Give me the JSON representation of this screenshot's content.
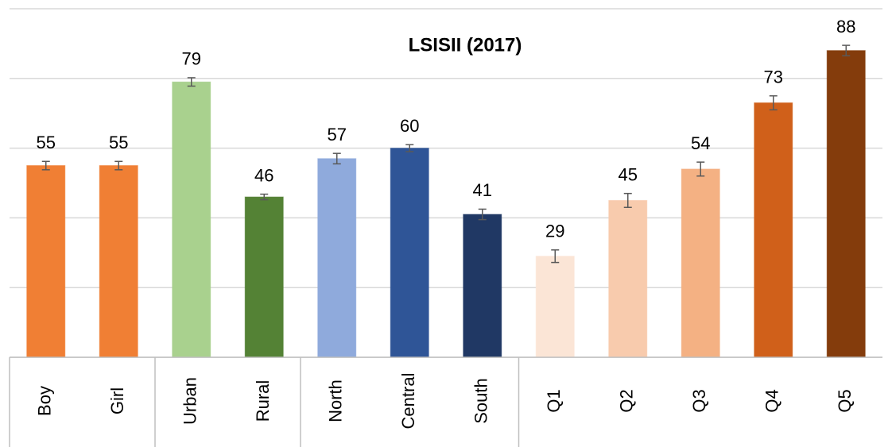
{
  "chart_data": {
    "type": "bar",
    "title": "LSISII (2017)",
    "categories": [
      "Boy",
      "Girl",
      "Urban",
      "Rural",
      "North",
      "Central",
      "South",
      "Q1",
      "Q2",
      "Q3",
      "Q4",
      "Q5"
    ],
    "values": [
      55,
      55,
      79,
      46,
      57,
      60,
      41,
      29,
      45,
      54,
      73,
      88
    ],
    "errors": [
      1.2,
      1.2,
      1.2,
      0.8,
      1.5,
      1,
      1.5,
      1.8,
      2,
      2,
      2,
      1.5
    ],
    "colors": [
      "#f07f34",
      "#f07f34",
      "#a9d18e",
      "#548235",
      "#8faadc",
      "#2f5597",
      "#203864",
      "#fbe5d6",
      "#f8cbad",
      "#f4b183",
      "#d0601a",
      "#843c0c"
    ],
    "ylim": [
      0,
      100
    ],
    "yticks": [
      0,
      20,
      40,
      60,
      80,
      100
    ],
    "grid": true
  }
}
